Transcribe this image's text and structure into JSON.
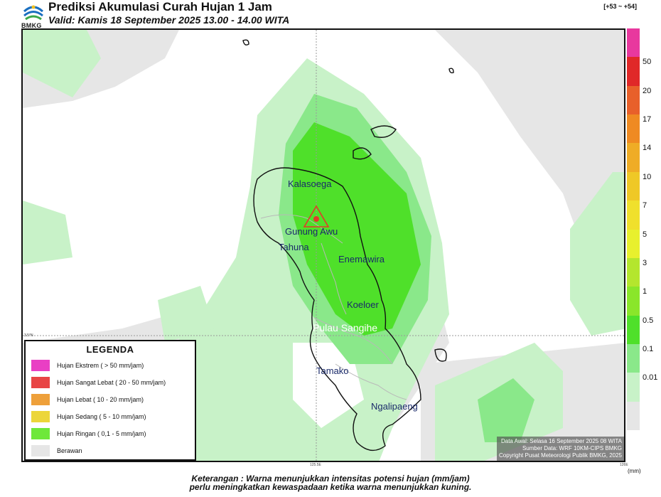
{
  "header": {
    "logo_text": "BMKG",
    "title": "Prediksi Akumulasi Curah Hujan 1 Jam",
    "subtitle": "Valid: Kamis 18 September 2025 13.00 - 14.00 WITA",
    "timecode": "[+53 ~ +54]"
  },
  "map": {
    "places": [
      {
        "id": "kalasoega",
        "label": "Kalasoega"
      },
      {
        "id": "gunung-awu",
        "label": "Gunung Awu"
      },
      {
        "id": "tahuna",
        "label": "Tahuna"
      },
      {
        "id": "enemawira",
        "label": "Enemawira"
      },
      {
        "id": "koeloer",
        "label": "Koeloer"
      },
      {
        "id": "pulau-sangihe",
        "label": "Pulau Sangihe"
      },
      {
        "id": "tamako",
        "label": "Tamako"
      },
      {
        "id": "ngalipaeng",
        "label": "Ngalipaeng"
      }
    ],
    "lat_tick": "3.5°N",
    "lon_ticks": [
      "125.5E",
      "126E"
    ],
    "volcano_icon": "volcano-triangle-icon"
  },
  "legend": {
    "title": "LEGENDA",
    "items": [
      {
        "label": "Hujan Ekstrem ( > 50 mm/jam)",
        "color": "#e93fc4"
      },
      {
        "label": "Hujan Sangat Lebat ( 20 - 50 mm/jam)",
        "color": "#e84545"
      },
      {
        "label": "Hujan Lebat ( 10 - 20 mm/jam)",
        "color": "#eea03a"
      },
      {
        "label": "Hujan Sedang ( 5 - 10 mm/jam)",
        "color": "#ecd63a"
      },
      {
        "label": "Hujan Ringan ( 0,1 - 5 mm/jam)",
        "color": "#6ee83a"
      },
      {
        "label": "Berawan",
        "color": "#e6e6e6"
      }
    ]
  },
  "info": {
    "line1": "Data Awal: Selasa 16 September 2025 08 WITA",
    "line2": "Sumber Data: WRF 10KM-CIPS BMKG",
    "line3": "Copyright Pusat Meteorologi Publik BMKG, 2025"
  },
  "scale": {
    "colors": [
      "#e8389e",
      "#e02828",
      "#e8602a",
      "#ef8a22",
      "#efac26",
      "#efc826",
      "#f0e02c",
      "#e8f02e",
      "#b4e62e",
      "#8ae62a",
      "#4fe02a",
      "#8ae88a",
      "#c8f2c8",
      "#e6e6e6"
    ],
    "labels": [
      "50",
      "20",
      "17",
      "14",
      "10",
      "7",
      "5",
      "3",
      "1",
      "0.5",
      "0.1",
      "0.01"
    ],
    "unit": "(mm)"
  },
  "footer": {
    "line1": "Keterangan : Warna menunjukkan intensitas potensi hujan (mm/jam)",
    "line2": "perlu meningkatkan kewaspadaan ketika warna menunjukkan kuning."
  }
}
